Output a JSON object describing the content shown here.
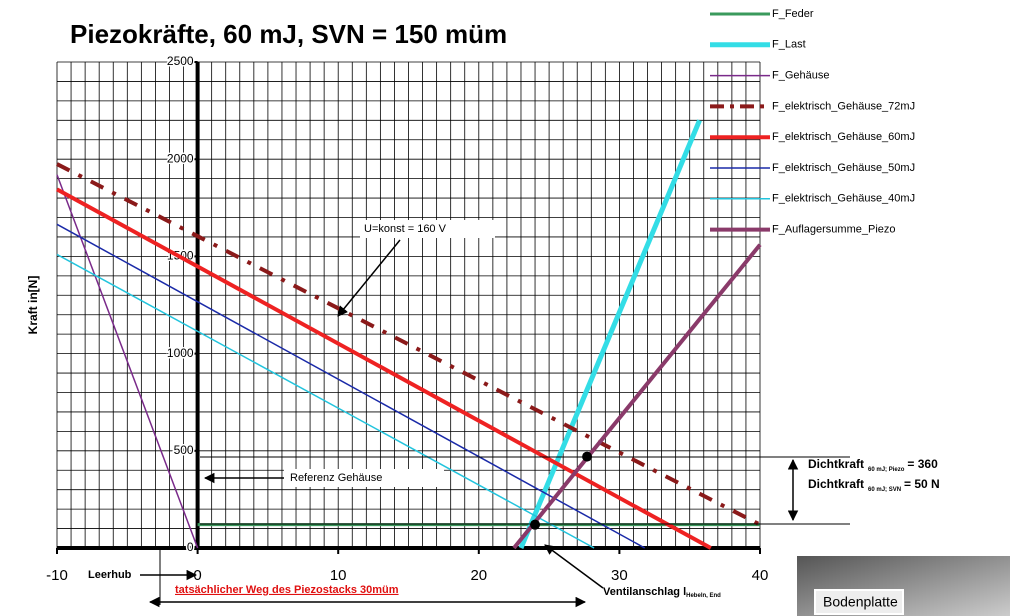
{
  "chart_data": {
    "type": "line",
    "title": "Piezokräfte, 60 mJ, SVN = 150 müm",
    "y_label": "Kraft in[N]",
    "xlim": [
      -10,
      40
    ],
    "ylim": [
      0,
      2500
    ],
    "xticks": [
      -10,
      0,
      10,
      20,
      30,
      40
    ],
    "yticks": [
      0,
      500,
      1000,
      1500,
      2000,
      2500
    ],
    "grid": true,
    "grid_minor": {
      "x": 1,
      "y": 100
    },
    "series": [
      {
        "name": "F_Feder",
        "color": "#3a9a5c",
        "width": 3,
        "dash": false,
        "x": [
          0,
          40
        ],
        "values": [
          120,
          120
        ]
      },
      {
        "name": "F_Last",
        "color": "#33dde6",
        "width": 5,
        "dash": false,
        "x": [
          23,
          35.7
        ],
        "values": [
          0,
          2200
        ]
      },
      {
        "name": "F_Gehäuse",
        "color": "#7a2a8a",
        "width": 1.5,
        "dash": false,
        "x": [
          -10,
          0
        ],
        "values": [
          1920,
          0
        ]
      },
      {
        "name": "F_elektrisch_Gehäuse_72mJ",
        "color": "#8b1a1a",
        "width": 4,
        "dash": true,
        "x": [
          -10,
          40
        ],
        "values": [
          1975,
          120
        ]
      },
      {
        "name": "F_elektrisch_Gehäuse_60mJ",
        "color": "#ee2222",
        "width": 4,
        "dash": false,
        "x": [
          -10,
          36.5
        ],
        "values": [
          1845,
          0
        ]
      },
      {
        "name": "F_elektrisch_Gehäuse_50mJ",
        "color": "#1a2aa8",
        "width": 1.5,
        "dash": false,
        "x": [
          -10,
          31.8
        ],
        "values": [
          1665,
          0
        ]
      },
      {
        "name": "F_elektrisch_Gehäuse_40mJ",
        "color": "#22c4dd",
        "width": 1.5,
        "dash": false,
        "x": [
          -10,
          28.2
        ],
        "values": [
          1510,
          0
        ]
      },
      {
        "name": "F_Auflagersumme_Piezo",
        "color": "#8a3a6a",
        "width": 4,
        "dash": false,
        "x": [
          22.5,
          40
        ],
        "values": [
          0,
          1560
        ]
      }
    ],
    "points": {
      "x": [
        24,
        27.7
      ],
      "values": [
        120,
        470
      ]
    },
    "annotations": {
      "voltage": "U=konst = 160 V",
      "reference": "Referenz Gehäuse",
      "idle": "Leerhub",
      "travel": "tatsächlicher Weg des Piezostacks 30müm",
      "stop": "Ventilanschlag l",
      "stop_sub": "Hebeln, End",
      "seal1": "Dichtkraft",
      "seal1_sub": "60 mJ; Piezo",
      "seal1_val": "= 360",
      "seal2": "Dichtkraft",
      "seal2_sub": "60 mJ; SVN",
      "seal2_val": "= 50 N",
      "photo": "Bodenplatte"
    }
  }
}
